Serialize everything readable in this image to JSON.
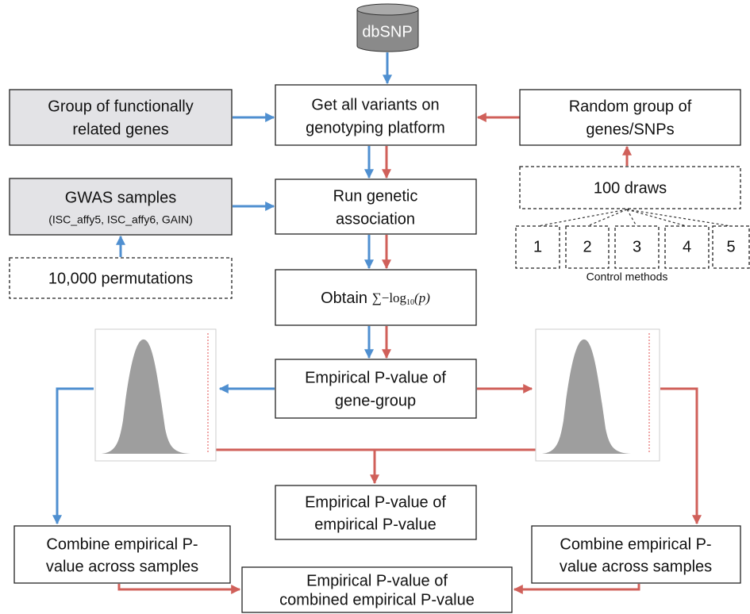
{
  "nodes": [
    {
      "lines": [
        "dbSNP"
      ]
    },
    {
      "lines": [
        "Get all variants on",
        "genotyping platform"
      ]
    },
    {
      "lines": [
        "Group of functionally",
        "related genes"
      ]
    },
    {
      "lines": [
        "Random group of",
        "genes/SNPs"
      ]
    },
    {
      "lines": [
        "100 draws"
      ]
    },
    {
      "lines": [
        "GWAS samples",
        "(ISC_affy5, ISC_affy6, GAIN)"
      ]
    },
    {
      "lines": [
        "Run genetic",
        "association"
      ]
    },
    {
      "lines": [
        "10,000 permutations"
      ]
    },
    {
      "label": "Obtain",
      "formula": "∑−log",
      "subscript": "10",
      "argument": "(p)"
    },
    {
      "lines": [
        "Empirical P-value of",
        "gene-group"
      ]
    },
    {
      "lines": [
        "Empirical P-value of",
        "empirical P-value"
      ]
    },
    {
      "lines": [
        "Combine empirical P-",
        "value across samples"
      ]
    },
    {
      "lines": [
        "Combine empirical P-",
        "value across samples"
      ]
    },
    {
      "lines": [
        "Empirical P-value of",
        "combined empirical P-value"
      ]
    }
  ],
  "control_methods": {
    "items": [
      "1",
      "2",
      "3",
      "4",
      "5"
    ],
    "caption": "Control methods"
  }
}
